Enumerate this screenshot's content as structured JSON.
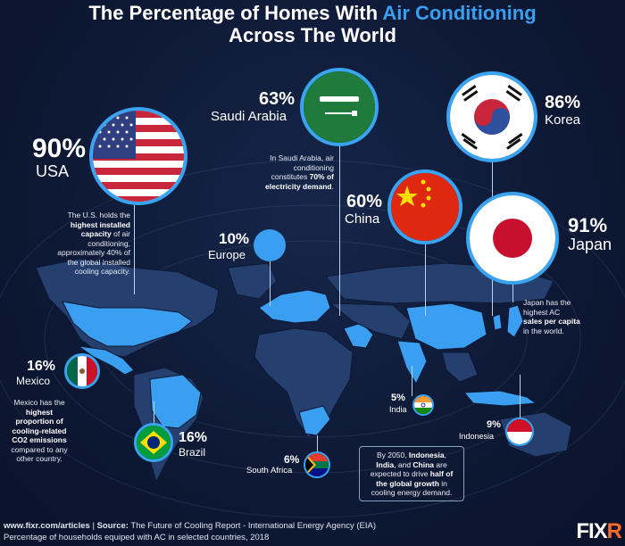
{
  "title": {
    "line1_pre": "The Percentage of Homes With ",
    "line1_accent": "Air Conditioning",
    "line2": "Across The World"
  },
  "countries": {
    "usa": {
      "pct": "90%",
      "name": "USA"
    },
    "saudi": {
      "pct": "63%",
      "name": "Saudi Arabia"
    },
    "korea": {
      "pct": "86%",
      "name": "Korea"
    },
    "china": {
      "pct": "60%",
      "name": "China"
    },
    "japan": {
      "pct": "91%",
      "name": "Japan"
    },
    "europe": {
      "pct": "10%",
      "name": "Europe"
    },
    "mexico": {
      "pct": "16%",
      "name": "Mexico"
    },
    "brazil": {
      "pct": "16%",
      "name": "Brazil"
    },
    "india": {
      "pct": "5%",
      "name": "India"
    },
    "indonesia": {
      "pct": "9%",
      "name": "Indonesia"
    },
    "south_africa": {
      "pct": "6%",
      "name": "South Africa"
    }
  },
  "notes": {
    "usa": {
      "l1": "The U.S. holds the",
      "b1": "highest installed",
      "b2": "capacity",
      "l2": " of air",
      "l3": "conditioning,",
      "l4": "approximately 40% of",
      "l5": "the global installed",
      "l6": "cooling capacity."
    },
    "saudi": {
      "l1": "In Saudi Arabia, air",
      "l2": "conditioning",
      "l3": "constitutes ",
      "b1": "70% of",
      "b2": "electricity demand",
      "l4": "."
    },
    "japan": {
      "l1": "Japan has the",
      "l2": "highest AC",
      "b1": "sales per capita",
      "l3": "in the world."
    },
    "mexico": {
      "l1": "Mexico has the",
      "b1": "highest",
      "b2": "proportion of",
      "b3": "cooling-related",
      "b4": "CO2 emissions",
      "l2": "compared to any",
      "l3": "other country."
    },
    "growth": {
      "l1": "By 2050, ",
      "b1": "Indonesia",
      "l2": ",",
      "b2": "India",
      "l3": ", and ",
      "b3": "China",
      "l4": " are",
      "l5": "expected to drive ",
      "b4": "half of",
      "b5": "the global growth",
      "l6": " in",
      "l7": "cooling energy demand."
    }
  },
  "footer": {
    "url": "www.fixr.com/articles",
    "sep": "|",
    "source_label": "Source:",
    "source_text": " The Future of Cooling Report - International Energy Agency (EIA)",
    "line2": "Percentage of households equiped with AC in selected countries, 2018",
    "brand_pre": "FIX",
    "brand_accent": "R"
  },
  "colors": {
    "background": "#0d1834",
    "accent": "#3a9ff0",
    "land": "#25406f",
    "highlight": "#3a9ff0",
    "brand_accent": "#ff6a2b"
  }
}
